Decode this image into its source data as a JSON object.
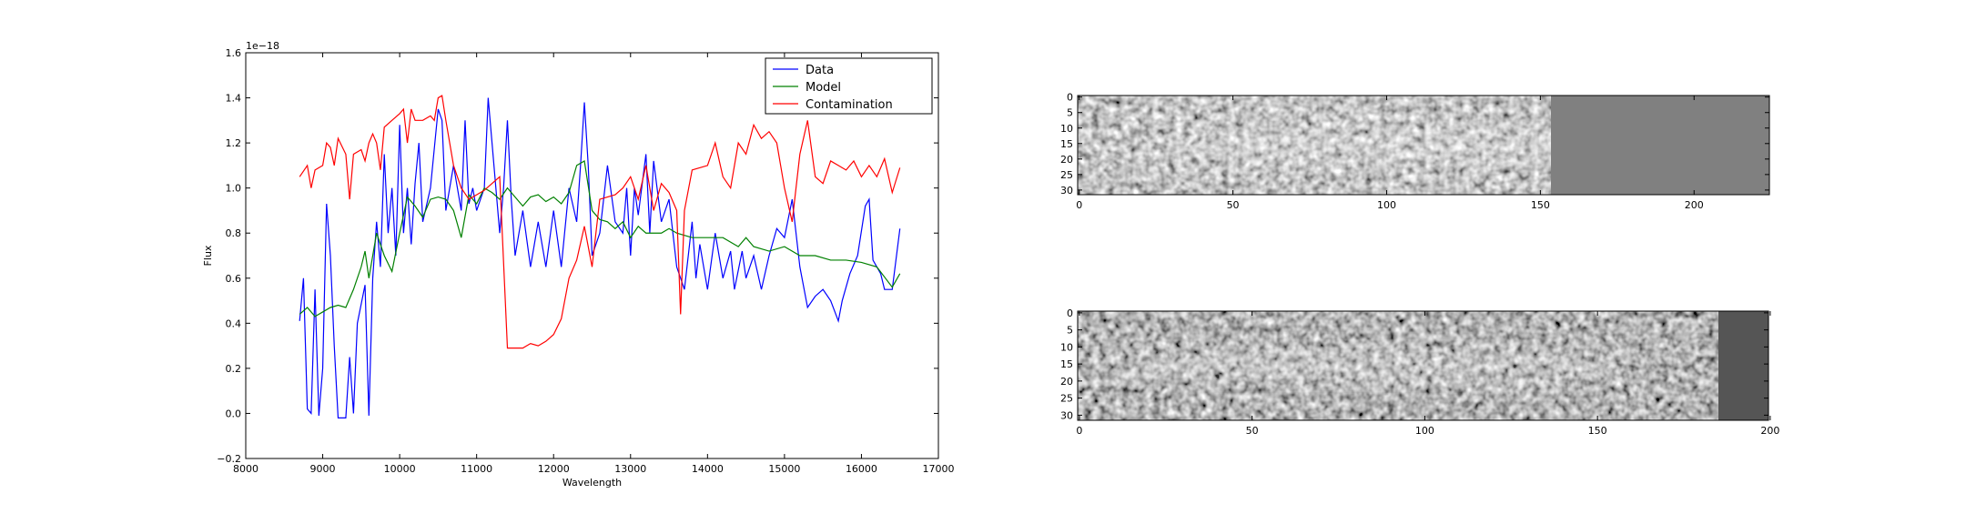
{
  "chart_data": [
    {
      "type": "line",
      "x_label": "Wavelength",
      "y_label": "Flux",
      "y_offset_label": "1e−18",
      "xlim": [
        8000,
        17000
      ],
      "xticks": [
        8000,
        9000,
        10000,
        11000,
        12000,
        13000,
        14000,
        15000,
        16000,
        17000
      ],
      "ylim": [
        -0.2,
        1.6
      ],
      "yticks": [
        {
          "value": -0.2,
          "label": "−0.2"
        },
        {
          "value": 0,
          "label": "0.0"
        },
        0.2,
        0.4,
        0.6,
        0.8,
        {
          "value": 1,
          "label": "1.0"
        },
        1.2,
        1.4,
        1.6
      ],
      "legend": "upper right",
      "series": [
        {
          "name": "Data",
          "color": "#0000ff",
          "x": [
            8700,
            8750,
            8800,
            8850,
            8900,
            8950,
            9000,
            9050,
            9100,
            9150,
            9200,
            9300,
            9350,
            9400,
            9450,
            9550,
            9600,
            9650,
            9700,
            9750,
            9800,
            9850,
            9900,
            9950,
            10000,
            10050,
            10100,
            10150,
            10200,
            10250,
            10300,
            10400,
            10500,
            10550,
            10600,
            10700,
            10800,
            10850,
            10900,
            10950,
            11000,
            11100,
            11150,
            11200,
            11300,
            11350,
            11400,
            11450,
            11500,
            11600,
            11700,
            11800,
            11900,
            12000,
            12100,
            12200,
            12300,
            12350,
            12400,
            12450,
            12500,
            12600,
            12700,
            12800,
            12900,
            12950,
            13000,
            13050,
            13100,
            13200,
            13250,
            13300,
            13400,
            13500,
            13600,
            13700,
            13800,
            13850,
            13900,
            14000,
            14100,
            14200,
            14300,
            14350,
            14450,
            14500,
            14600,
            14700,
            14800,
            14900,
            15000,
            15100,
            15200,
            15300,
            15400,
            15500,
            15600,
            15700,
            15750,
            15850,
            15950,
            16050,
            16100,
            16150,
            16250,
            16300,
            16400,
            16500
          ],
          "values": [
            0.41,
            0.6,
            0.02,
            0.0,
            0.55,
            -0.01,
            0.2,
            0.93,
            0.7,
            0.3,
            -0.02,
            -0.02,
            0.25,
            0.0,
            0.4,
            0.57,
            -0.01,
            0.6,
            0.85,
            0.65,
            1.15,
            0.8,
            1.0,
            0.7,
            1.28,
            0.8,
            1.0,
            0.75,
            1.02,
            1.2,
            0.85,
            1.0,
            1.35,
            1.3,
            0.9,
            1.1,
            0.9,
            1.3,
            0.93,
            1.0,
            0.9,
            1.0,
            1.4,
            1.2,
            0.8,
            1.0,
            1.3,
            0.95,
            0.7,
            0.9,
            0.65,
            0.85,
            0.65,
            0.9,
            0.65,
            1.0,
            0.85,
            1.1,
            1.38,
            1.1,
            0.7,
            0.8,
            1.1,
            0.85,
            0.8,
            1.0,
            0.7,
            1.0,
            0.88,
            1.15,
            0.8,
            1.12,
            0.85,
            0.95,
            0.65,
            0.55,
            0.85,
            0.6,
            0.75,
            0.55,
            0.8,
            0.6,
            0.72,
            0.55,
            0.72,
            0.6,
            0.7,
            0.55,
            0.7,
            0.82,
            0.78,
            0.95,
            0.65,
            0.47,
            0.52,
            0.55,
            0.5,
            0.41,
            0.5,
            0.62,
            0.7,
            0.92,
            0.95,
            0.68,
            0.62,
            0.55,
            0.55,
            0.82
          ]
        },
        {
          "name": "Model",
          "color": "#008000",
          "x": [
            8700,
            8800,
            8900,
            9000,
            9100,
            9200,
            9300,
            9400,
            9500,
            9550,
            9600,
            9700,
            9800,
            9900,
            10000,
            10100,
            10200,
            10300,
            10400,
            10500,
            10600,
            10700,
            10800,
            10900,
            11000,
            11100,
            11200,
            11300,
            11400,
            11500,
            11600,
            11700,
            11800,
            11900,
            12000,
            12100,
            12200,
            12300,
            12400,
            12500,
            12600,
            12700,
            12800,
            12900,
            13000,
            13100,
            13200,
            13400,
            13500,
            13600,
            13800,
            14000,
            14200,
            14400,
            14500,
            14600,
            14800,
            15000,
            15200,
            15400,
            15600,
            15800,
            16000,
            16200,
            16400,
            16500
          ],
          "values": [
            0.44,
            0.47,
            0.43,
            0.45,
            0.47,
            0.48,
            0.47,
            0.55,
            0.65,
            0.72,
            0.6,
            0.8,
            0.7,
            0.63,
            0.8,
            0.96,
            0.92,
            0.87,
            0.95,
            0.96,
            0.95,
            0.9,
            0.78,
            0.97,
            0.93,
            1.0,
            0.98,
            0.95,
            1.0,
            0.96,
            0.92,
            0.96,
            0.97,
            0.94,
            0.96,
            0.93,
            0.98,
            1.1,
            1.12,
            0.9,
            0.86,
            0.85,
            0.82,
            0.85,
            0.78,
            0.83,
            0.8,
            0.8,
            0.82,
            0.8,
            0.78,
            0.78,
            0.78,
            0.74,
            0.78,
            0.74,
            0.72,
            0.74,
            0.7,
            0.7,
            0.68,
            0.68,
            0.67,
            0.65,
            0.56,
            0.62
          ]
        },
        {
          "name": "Contamination",
          "color": "#ff0000",
          "x": [
            8700,
            8800,
            8850,
            8900,
            9000,
            9050,
            9100,
            9150,
            9200,
            9300,
            9350,
            9400,
            9500,
            9550,
            9600,
            9650,
            9700,
            9750,
            9800,
            9900,
            10000,
            10050,
            10100,
            10150,
            10200,
            10300,
            10400,
            10450,
            10500,
            10550,
            10600,
            10700,
            10800,
            10900,
            11000,
            11100,
            11200,
            11300,
            11400,
            11500,
            11600,
            11700,
            11800,
            11900,
            12000,
            12100,
            12200,
            12300,
            12400,
            12500,
            12600,
            12700,
            12800,
            12900,
            13000,
            13100,
            13200,
            13300,
            13400,
            13500,
            13600,
            13650,
            13700,
            13800,
            14000,
            14100,
            14200,
            14300,
            14400,
            14500,
            14600,
            14700,
            14800,
            14900,
            15000,
            15100,
            15200,
            15300,
            15400,
            15500,
            15600,
            15700,
            15800,
            15900,
            16000,
            16100,
            16200,
            16300,
            16400,
            16500
          ],
          "values": [
            1.05,
            1.1,
            1.0,
            1.08,
            1.1,
            1.2,
            1.18,
            1.1,
            1.22,
            1.15,
            0.95,
            1.15,
            1.17,
            1.12,
            1.2,
            1.24,
            1.2,
            1.08,
            1.27,
            1.3,
            1.33,
            1.35,
            1.2,
            1.35,
            1.3,
            1.3,
            1.32,
            1.3,
            1.4,
            1.41,
            1.3,
            1.1,
            1.0,
            0.95,
            0.97,
            0.99,
            1.02,
            1.05,
            0.29,
            0.29,
            0.29,
            0.31,
            0.3,
            0.32,
            0.35,
            0.42,
            0.6,
            0.68,
            0.83,
            0.65,
            0.95,
            0.96,
            0.97,
            1.0,
            1.05,
            0.95,
            1.1,
            0.9,
            1.02,
            0.98,
            0.9,
            0.44,
            0.9,
            1.08,
            1.1,
            1.2,
            1.05,
            1.0,
            1.2,
            1.15,
            1.28,
            1.22,
            1.25,
            1.2,
            1.0,
            0.85,
            1.15,
            1.3,
            1.05,
            1.02,
            1.12,
            1.1,
            1.08,
            1.12,
            1.05,
            1.1,
            1.05,
            1.13,
            0.98,
            1.09
          ]
        }
      ]
    },
    {
      "type": "image",
      "xlim": [
        -0.5,
        224.5
      ],
      "xticks": [
        0,
        50,
        100,
        150,
        200
      ],
      "ylim": [
        31.5,
        -0.5
      ],
      "yticks": [
        0,
        5,
        10,
        15,
        20,
        25,
        30
      ]
    },
    {
      "type": "image",
      "xlim": [
        -0.5,
        199.5
      ],
      "xticks": [
        0,
        50,
        100,
        150,
        200
      ],
      "ylim": [
        31.5,
        -0.5
      ],
      "yticks": [
        0,
        5,
        10,
        15,
        20,
        25,
        30
      ]
    }
  ]
}
